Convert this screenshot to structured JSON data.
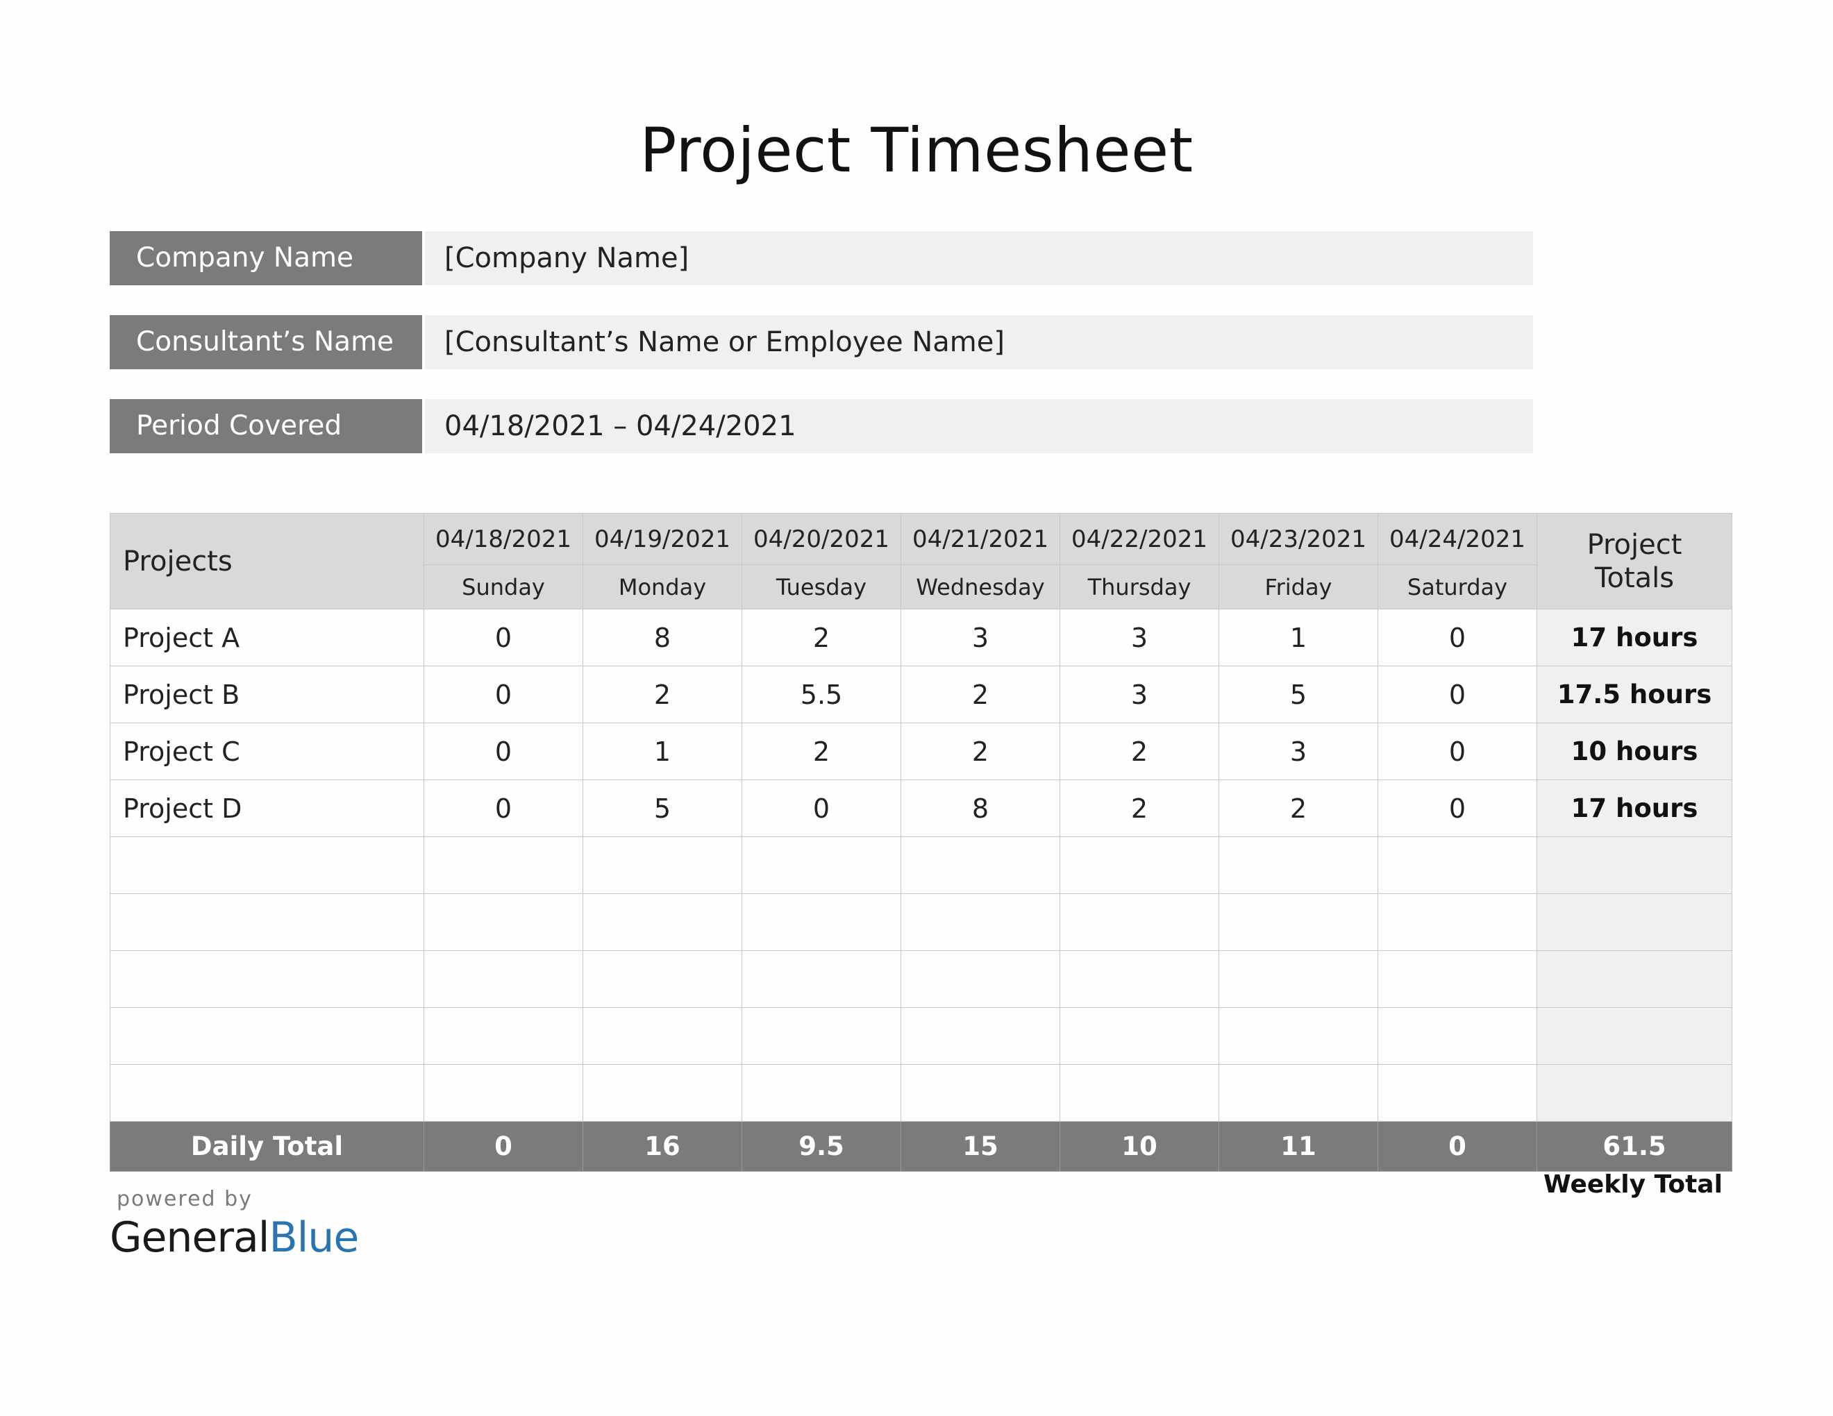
{
  "title": "Project Timesheet",
  "info": {
    "company_label": "Company Name",
    "company_value": "[Company Name]",
    "consultant_label": "Consultant’s Name",
    "consultant_value": "[Consultant’s Name or Employee Name]",
    "period_label": "Period Covered",
    "period_value": "04/18/2021 – 04/24/2021"
  },
  "table": {
    "projects_header": "Projects",
    "totals_header_line1": "Project",
    "totals_header_line2": "Totals",
    "dates": [
      "04/18/2021",
      "04/19/2021",
      "04/20/2021",
      "04/21/2021",
      "04/22/2021",
      "04/23/2021",
      "04/24/2021"
    ],
    "days": [
      "Sunday",
      "Monday",
      "Tuesday",
      "Wednesday",
      "Thursday",
      "Friday",
      "Saturday"
    ],
    "rows": [
      {
        "name": "Project A",
        "hours": [
          "0",
          "8",
          "2",
          "3",
          "3",
          "1",
          "0"
        ],
        "total": "17 hours"
      },
      {
        "name": "Project B",
        "hours": [
          "0",
          "2",
          "5.5",
          "2",
          "3",
          "5",
          "0"
        ],
        "total": "17.5 hours"
      },
      {
        "name": "Project C",
        "hours": [
          "0",
          "1",
          "2",
          "2",
          "2",
          "3",
          "0"
        ],
        "total": "10 hours"
      },
      {
        "name": "Project D",
        "hours": [
          "0",
          "5",
          "0",
          "8",
          "2",
          "2",
          "0"
        ],
        "total": "17 hours"
      }
    ],
    "empty_rows": 5,
    "daily_total_label": "Daily Total",
    "daily_totals": [
      "0",
      "16",
      "9.5",
      "15",
      "10",
      "11",
      "0"
    ],
    "weekly_total": "61.5",
    "weekly_total_label": "Weekly Total"
  },
  "footer": {
    "powered_by": "powered by",
    "brand_general": "General",
    "brand_blue": "Blue"
  }
}
